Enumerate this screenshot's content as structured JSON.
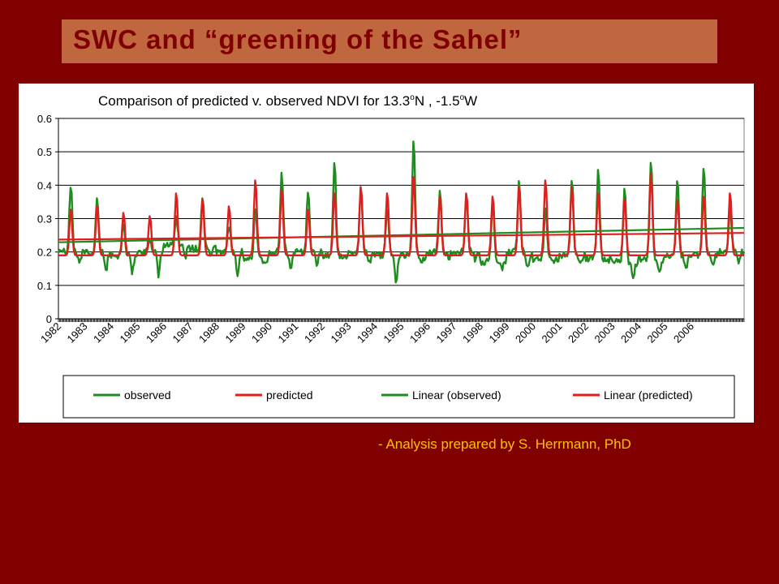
{
  "slide": {
    "title": "SWC and “greening of the Sahel”",
    "credit": "- Analysis prepared by S. Herrmann, PhD",
    "colors": {
      "background": "#800000",
      "title_box": "#C0673F",
      "title_text": "#800000",
      "credit_text": "#FFC000"
    }
  },
  "chart_data": {
    "type": "line",
    "title": "Comparison of predicted v. observed NDVI for 13.3",
    "title_parts": [
      "Comparison of predicted v. observed NDVI for 13.3",
      "o",
      "N , -1.5",
      "o",
      "W"
    ],
    "ylim": [
      0,
      0.6
    ],
    "yticks": [
      "0",
      "0.1",
      "0.2",
      "0.3",
      "0.4",
      "0.5",
      "0.6"
    ],
    "xlim": [
      1982,
      2008
    ],
    "xticks": [
      "1982",
      "1983",
      "1984",
      "1985",
      "1986",
      "1987",
      "1988",
      "1989",
      "1990",
      "1991",
      "1992",
      "1993",
      "1994",
      "1995",
      "1996",
      "1997",
      "1998",
      "1999",
      "2000",
      "2001",
      "2002",
      "2003",
      "2004",
      "2005",
      "2006"
    ],
    "grid": true,
    "legend_position": "bottom",
    "series": [
      {
        "name": "observed",
        "color": "#1E8C1E",
        "base": [
          0.2,
          0.2,
          0.19,
          0.2,
          0.22,
          0.21,
          0.2,
          0.18,
          0.2,
          0.2,
          0.19,
          0.2,
          0.19,
          0.19,
          0.2,
          0.2,
          0.17,
          0.2,
          0.18,
          0.19,
          0.18,
          0.17,
          0.18,
          0.19,
          0.19,
          0.2
        ],
        "peaks": [
          0.4,
          0.36,
          0.29,
          0.23,
          0.3,
          0.37,
          0.28,
          0.33,
          0.44,
          0.39,
          0.47,
          0.39,
          0.34,
          0.53,
          0.39,
          0.37,
          0.36,
          0.41,
          0.34,
          0.42,
          0.46,
          0.4,
          0.48,
          0.42,
          0.46,
          0.33
        ],
        "mins": [
          0.17,
          0.14,
          0.14,
          0.13,
          0.18,
          0.19,
          0.13,
          0.16,
          0.15,
          0.16,
          0.18,
          0.17,
          0.11,
          0.17,
          0.18,
          0.18,
          0.15,
          0.15,
          0.17,
          0.16,
          0.17,
          0.12,
          0.14,
          0.15,
          0.16,
          0.17
        ]
      },
      {
        "name": "predicted",
        "color": "#E01E1E",
        "base": [
          0.19,
          0.19,
          0.19,
          0.19,
          0.19,
          0.19,
          0.19,
          0.19,
          0.19,
          0.19,
          0.19,
          0.19,
          0.19,
          0.19,
          0.19,
          0.19,
          0.19,
          0.19,
          0.19,
          0.19,
          0.19,
          0.19,
          0.19,
          0.19,
          0.19,
          0.19
        ],
        "peaks": [
          0.33,
          0.34,
          0.32,
          0.31,
          0.38,
          0.36,
          0.34,
          0.42,
          0.39,
          0.33,
          0.38,
          0.4,
          0.38,
          0.43,
          0.37,
          0.38,
          0.37,
          0.4,
          0.42,
          0.4,
          0.38,
          0.36,
          0.44,
          0.36,
          0.37,
          0.38
        ]
      },
      {
        "name": "Linear (observed)",
        "color": "#1E8C1E",
        "trend": [
          [
            1982,
            0.229
          ],
          [
            2008,
            0.272
          ]
        ]
      },
      {
        "name": "Linear (predicted)",
        "color": "#E01E1E",
        "trend": [
          [
            1982,
            0.237
          ],
          [
            2008,
            0.257
          ]
        ]
      }
    ]
  }
}
